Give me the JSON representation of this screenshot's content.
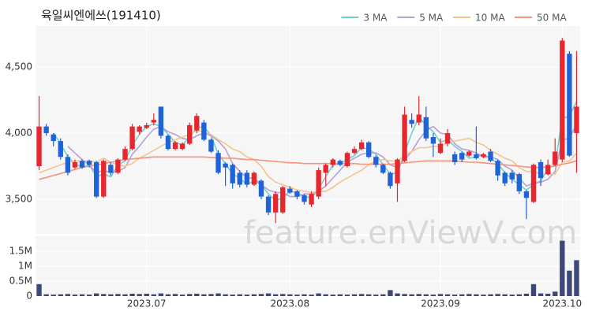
{
  "chart_data": {
    "type": "candlestick",
    "title": "육일씨엔에쓰(191410)",
    "watermark": "feature.enViewV.com",
    "legend": "top-right",
    "grid": true,
    "up_color": "#e8262e",
    "down_color": "#1f63d8",
    "categories": [
      null,
      null,
      null,
      null,
      null,
      null,
      null,
      null,
      null,
      null,
      null,
      null,
      null,
      null,
      null,
      "2023.07",
      null,
      null,
      null,
      null,
      null,
      null,
      null,
      null,
      null,
      null,
      null,
      null,
      null,
      null,
      null,
      null,
      null,
      null,
      null,
      "2023.08",
      null,
      null,
      null,
      null,
      null,
      null,
      null,
      null,
      null,
      null,
      null,
      null,
      null,
      null,
      null,
      null,
      null,
      null,
      null,
      null,
      "2023.09",
      null,
      null,
      null,
      null,
      null,
      null,
      null,
      null,
      null,
      null,
      null,
      null,
      null,
      null,
      null,
      null,
      "2023.10",
      null,
      null
    ],
    "open": [
      3750,
      4050,
      3990,
      3940,
      3820,
      3740,
      3790,
      3790,
      3780,
      3520,
      3760,
      3700,
      3800,
      3880,
      4010,
      4040,
      4080,
      4200,
      3980,
      3880,
      3880,
      3920,
      4020,
      4080,
      3950,
      3850,
      3770,
      3760,
      3700,
      3700,
      3610,
      3640,
      3520,
      3400,
      3400,
      3580,
      3560,
      3530,
      3460,
      3520,
      3700,
      3760,
      3790,
      3750,
      3850,
      3880,
      3930,
      3820,
      3760,
      3700,
      3620,
      3790,
      4100,
      4080,
      4120,
      3970,
      3850,
      3920,
      3840,
      3850,
      3830,
      3840,
      3820,
      3860,
      3790,
      3700,
      3700,
      3690,
      3560,
      3480,
      3780,
      3690,
      3760,
      3800,
      4600,
      4000
    ],
    "high": [
      4280,
      4070,
      4000,
      3960,
      3840,
      3800,
      3800,
      3800,
      3790,
      3800,
      3780,
      3810,
      3900,
      4070,
      4060,
      4080,
      4150,
      4200,
      3990,
      3940,
      3930,
      4080,
      4150,
      4100,
      3960,
      3870,
      3780,
      3770,
      3720,
      3720,
      3710,
      3650,
      3530,
      3560,
      3600,
      3600,
      3570,
      3540,
      3560,
      3740,
      3770,
      3810,
      3800,
      3860,
      3900,
      3950,
      3940,
      3830,
      3770,
      3710,
      3810,
      4200,
      4150,
      4280,
      4200,
      4000,
      3960,
      4030,
      3860,
      3860,
      3870,
      4050,
      3850,
      3880,
      3800,
      3710,
      3720,
      3700,
      3570,
      3770,
      3800,
      3800,
      3960,
      4720,
      4620,
      4620
    ],
    "low": [
      3720,
      3980,
      3900,
      3800,
      3680,
      3730,
      3730,
      3740,
      3510,
      3510,
      3680,
      3690,
      3790,
      3870,
      3990,
      4030,
      4060,
      3960,
      3870,
      3870,
      3870,
      3910,
      4000,
      3940,
      3850,
      3690,
      3600,
      3580,
      3590,
      3590,
      3600,
      3500,
      3380,
      3320,
      3390,
      3540,
      3500,
      3460,
      3440,
      3500,
      3600,
      3740,
      3750,
      3740,
      3840,
      3870,
      3810,
      3740,
      3690,
      3580,
      3480,
      3780,
      4040,
      4060,
      3940,
      3820,
      3840,
      3900,
      3760,
      3780,
      3820,
      3800,
      3810,
      3780,
      3640,
      3600,
      3620,
      3540,
      3350,
      3470,
      3600,
      3680,
      3750,
      3780,
      3820,
      3700
    ],
    "close": [
      4050,
      4000,
      3940,
      3820,
      3700,
      3780,
      3740,
      3760,
      3520,
      3790,
      3700,
      3800,
      3880,
      4050,
      4050,
      4060,
      4100,
      3980,
      3880,
      3930,
      3920,
      4060,
      4130,
      3950,
      3860,
      3700,
      3740,
      3620,
      3610,
      3610,
      3700,
      3520,
      3400,
      3540,
      3590,
      3550,
      3520,
      3480,
      3540,
      3720,
      3760,
      3800,
      3760,
      3850,
      3880,
      3930,
      3820,
      3760,
      3700,
      3600,
      3800,
      4140,
      4070,
      4140,
      3960,
      3920,
      3920,
      4000,
      3780,
      3800,
      3860,
      3810,
      3840,
      3790,
      3680,
      3620,
      3650,
      3560,
      3510,
      3760,
      3660,
      3760,
      3860,
      4700,
      3830,
      4200
    ],
    "ylim": [
      3238,
      4810
    ],
    "yticks": [
      {
        "value": 3500,
        "label": "3,500"
      },
      {
        "value": 4000,
        "label": "4,000"
      },
      {
        "value": 4500,
        "label": "4,500"
      }
    ],
    "series": [
      {
        "name": "3 MA",
        "color": "#72cfcf",
        "values": [
          null,
          null,
          4000,
          3920,
          3820,
          3770,
          3740,
          3760,
          3670,
          3690,
          3670,
          3760,
          3790,
          3910,
          3990,
          4050,
          4070,
          4050,
          3990,
          3930,
          3910,
          3970,
          4040,
          4050,
          3980,
          3840,
          3770,
          3690,
          3660,
          3610,
          3640,
          3610,
          3540,
          3490,
          3510,
          3560,
          3550,
          3520,
          3510,
          3580,
          3670,
          3760,
          3770,
          3800,
          3830,
          3890,
          3880,
          3840,
          3760,
          3690,
          3700,
          3850,
          4000,
          4120,
          4060,
          4010,
          3930,
          3950,
          3900,
          3860,
          3810,
          3820,
          3840,
          3810,
          3770,
          3700,
          3650,
          3610,
          3570,
          3610,
          3640,
          3730,
          3760,
          4110,
          4130,
          4240
        ]
      },
      {
        "name": "5 MA",
        "color": "#b7a0d6",
        "values": [
          null,
          null,
          null,
          null,
          3900,
          3850,
          3800,
          3760,
          3700,
          3720,
          3700,
          3710,
          3740,
          3840,
          3900,
          3970,
          4030,
          4050,
          4010,
          3990,
          3960,
          3950,
          3980,
          4000,
          3980,
          3940,
          3880,
          3770,
          3710,
          3660,
          3660,
          3610,
          3570,
          3550,
          3550,
          3520,
          3520,
          3540,
          3540,
          3560,
          3600,
          3660,
          3720,
          3780,
          3810,
          3840,
          3850,
          3850,
          3820,
          3760,
          3740,
          3800,
          3860,
          3950,
          4020,
          4050,
          4000,
          3990,
          3920,
          3880,
          3870,
          3850,
          3820,
          3820,
          3800,
          3750,
          3720,
          3660,
          3600,
          3620,
          3630,
          3650,
          3710,
          3950,
          3960,
          4070
        ]
      },
      {
        "name": "10 MA",
        "color": "#f3c48e",
        "values": [
          3700,
          3720,
          3740,
          3760,
          3780,
          3790,
          3790,
          3790,
          3780,
          3810,
          3780,
          3760,
          3750,
          3770,
          3810,
          3840,
          3870,
          3900,
          3930,
          3950,
          3970,
          3990,
          4020,
          4010,
          3990,
          3950,
          3920,
          3880,
          3860,
          3820,
          3800,
          3750,
          3670,
          3630,
          3610,
          3590,
          3570,
          3560,
          3550,
          3560,
          3560,
          3590,
          3630,
          3660,
          3690,
          3720,
          3760,
          3790,
          3800,
          3790,
          3790,
          3830,
          3860,
          3890,
          3890,
          3900,
          3900,
          3930,
          3940,
          3950,
          3960,
          3930,
          3910,
          3870,
          3840,
          3810,
          3790,
          3740,
          3710,
          3710,
          3690,
          3690,
          3690,
          3780,
          3790,
          3850
        ]
      },
      {
        "name": "50 MA",
        "color": "#f5937c",
        "values": [
          3650,
          3665,
          3680,
          3695,
          3710,
          3725,
          3740,
          3750,
          3760,
          3770,
          3780,
          3790,
          3800,
          3805,
          3810,
          3815,
          3820,
          3820,
          3820,
          3820,
          3820,
          3820,
          3820,
          3820,
          3815,
          3815,
          3810,
          3810,
          3805,
          3800,
          3800,
          3795,
          3790,
          3785,
          3780,
          3775,
          3775,
          3770,
          3770,
          3770,
          3770,
          3770,
          3770,
          3770,
          3770,
          3765,
          3765,
          3765,
          3765,
          3765,
          3770,
          3775,
          3780,
          3785,
          3790,
          3790,
          3790,
          3790,
          3790,
          3785,
          3780,
          3780,
          3775,
          3770,
          3765,
          3760,
          3755,
          3750,
          3745,
          3740,
          3740,
          3745,
          3750,
          3765,
          3775,
          3790
        ]
      }
    ],
    "volume": {
      "color": "#3d4778",
      "values": [
        400000,
        60000,
        50000,
        60000,
        70000,
        50000,
        60000,
        50000,
        90000,
        70000,
        60000,
        70000,
        60000,
        80000,
        70000,
        80000,
        60000,
        90000,
        60000,
        70000,
        50000,
        70000,
        80000,
        60000,
        70000,
        90000,
        60000,
        50000,
        60000,
        50000,
        60000,
        70000,
        90000,
        60000,
        70000,
        60000,
        50000,
        60000,
        50000,
        90000,
        60000,
        50000,
        60000,
        50000,
        60000,
        70000,
        60000,
        50000,
        60000,
        200000,
        90000,
        70000,
        60000,
        70000,
        60000,
        50000,
        70000,
        60000,
        50000,
        60000,
        70000,
        60000,
        50000,
        60000,
        70000,
        60000,
        50000,
        60000,
        80000,
        400000,
        90000,
        80000,
        150000,
        1850000,
        850000,
        1200000
      ],
      "ylim": [
        0,
        2000000
      ],
      "yticks": [
        0,
        {
          "value": 500000,
          "label": "0.5M"
        },
        {
          "value": 1000000,
          "label": "1M"
        },
        {
          "value": 1500000,
          "label": "1.5M"
        }
      ]
    }
  }
}
